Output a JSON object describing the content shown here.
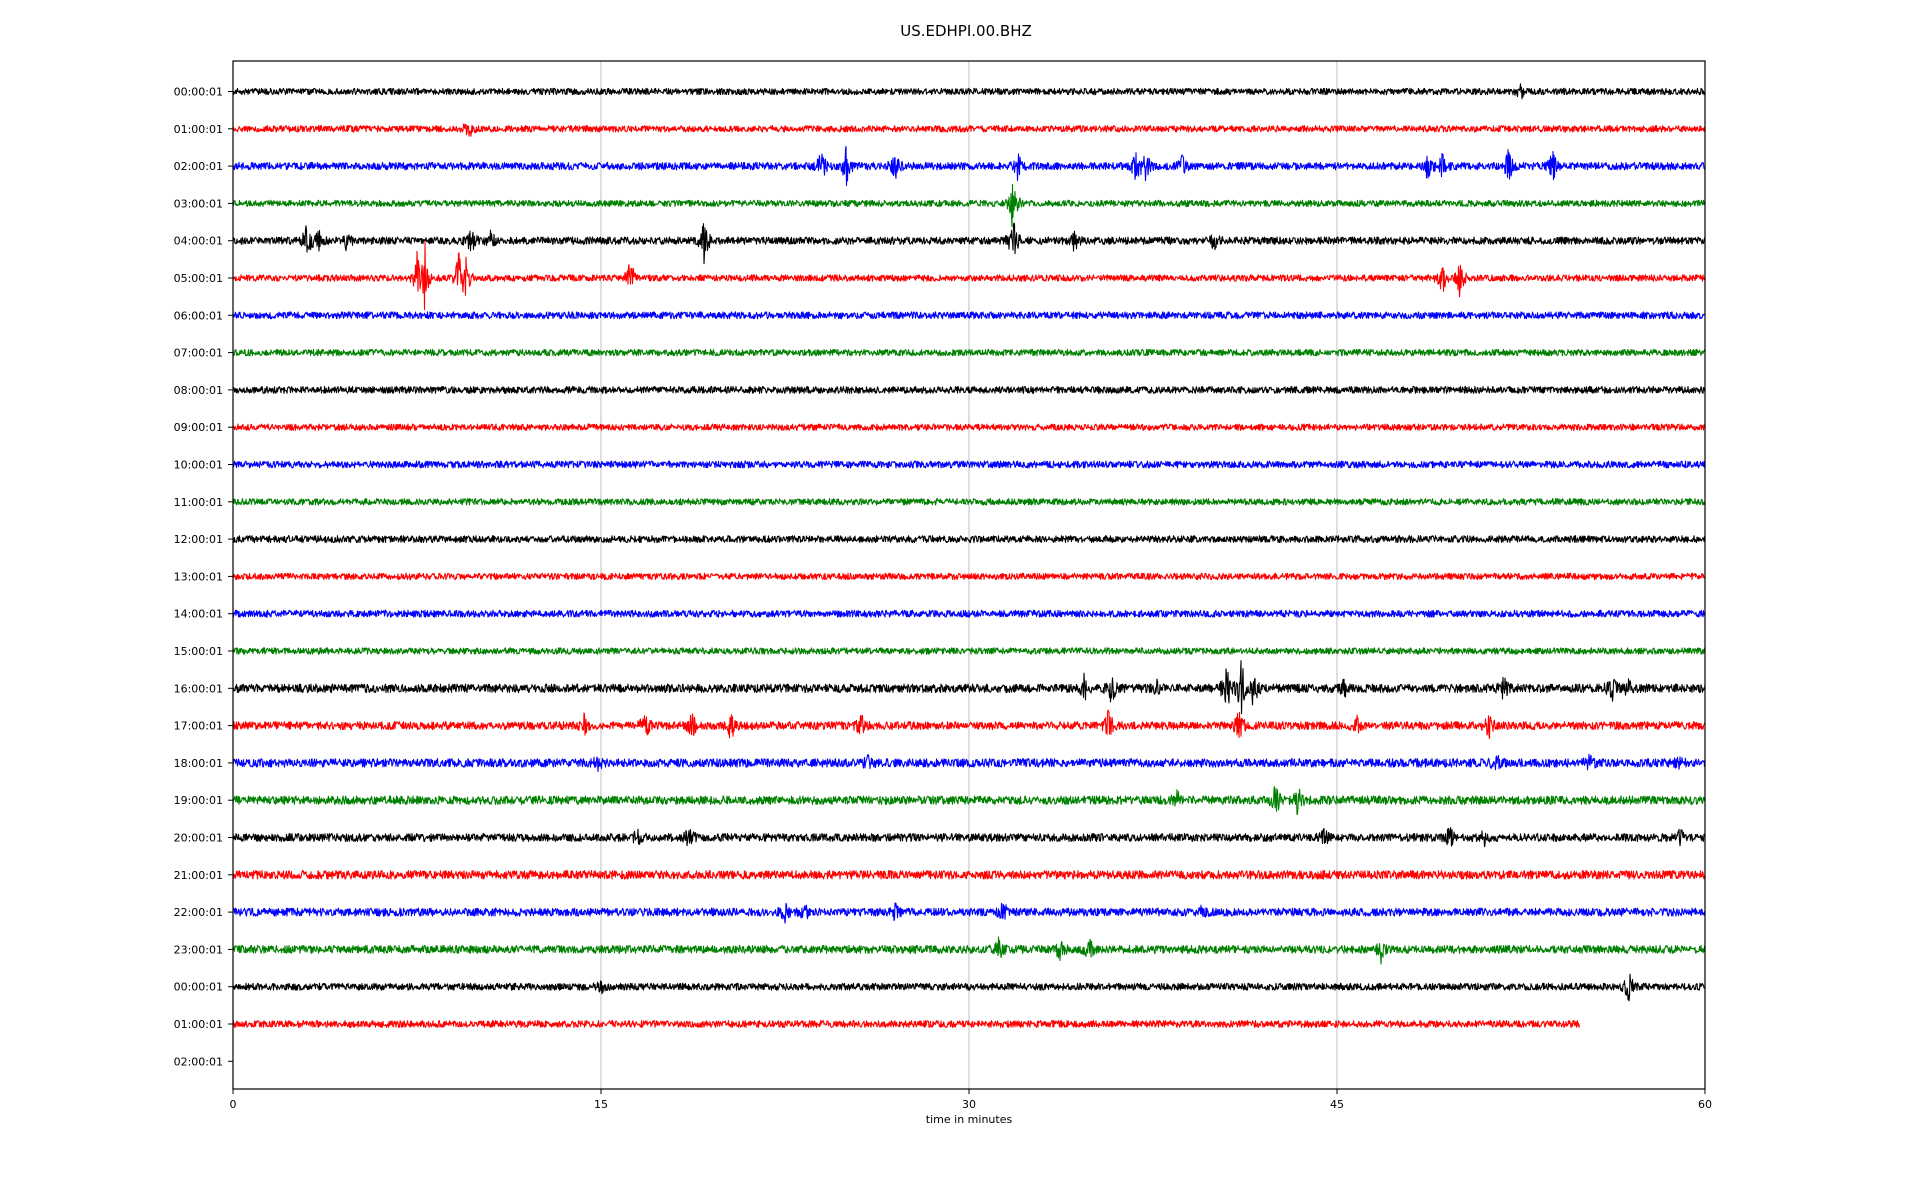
{
  "chart_data": {
    "type": "line",
    "title": "US.EDHPI.00.BHZ",
    "xlabel": "time in minutes",
    "ylabel": "",
    "xlim": [
      0,
      60
    ],
    "x_ticks": [
      0,
      15,
      30,
      45,
      60
    ],
    "x_tick_labels": [
      "0",
      "15",
      "30",
      "45",
      "60"
    ],
    "vertical_grid": true,
    "row_labels": [
      "00:00:01",
      "01:00:01",
      "02:00:01",
      "03:00:01",
      "04:00:01",
      "05:00:01",
      "06:00:01",
      "07:00:01",
      "08:00:01",
      "09:00:01",
      "10:00:01",
      "11:00:01",
      "12:00:01",
      "13:00:01",
      "14:00:01",
      "15:00:01",
      "16:00:01",
      "17:00:01",
      "18:00:01",
      "19:00:01",
      "20:00:01",
      "21:00:01",
      "22:00:01",
      "23:00:01",
      "00:00:01",
      "01:00:01",
      "02:00:01"
    ],
    "color_cycle": [
      "#000000",
      "#ff0000",
      "#0000ff",
      "#008000"
    ],
    "traces": [
      {
        "row": 0,
        "end_minute": 60,
        "noise": 0.12,
        "events": [
          {
            "t": 52.5,
            "amp": 0.25
          }
        ]
      },
      {
        "row": 1,
        "end_minute": 60,
        "noise": 0.12,
        "events": [
          {
            "t": 9.6,
            "amp": 0.4
          }
        ]
      },
      {
        "row": 2,
        "end_minute": 60,
        "noise": 0.14,
        "events": [
          {
            "t": 24.0,
            "amp": 0.6
          },
          {
            "t": 25.0,
            "amp": 0.7
          },
          {
            "t": 27.0,
            "amp": 0.5
          },
          {
            "t": 32.0,
            "amp": 0.5
          },
          {
            "t": 36.8,
            "amp": 0.7
          },
          {
            "t": 37.2,
            "amp": 0.6
          },
          {
            "t": 38.7,
            "amp": 0.5
          },
          {
            "t": 48.7,
            "amp": 0.5
          },
          {
            "t": 49.3,
            "amp": 0.5
          },
          {
            "t": 52.0,
            "amp": 0.7
          },
          {
            "t": 53.8,
            "amp": 0.6
          }
        ]
      },
      {
        "row": 3,
        "end_minute": 60,
        "noise": 0.12,
        "events": [
          {
            "t": 31.8,
            "amp": 1.3
          }
        ]
      },
      {
        "row": 4,
        "end_minute": 60,
        "noise": 0.14,
        "events": [
          {
            "t": 3.0,
            "amp": 0.7
          },
          {
            "t": 3.5,
            "amp": 0.8
          },
          {
            "t": 4.6,
            "amp": 0.6
          },
          {
            "t": 9.7,
            "amp": 0.5
          },
          {
            "t": 10.5,
            "amp": 0.4
          },
          {
            "t": 19.2,
            "amp": 0.9
          },
          {
            "t": 31.8,
            "amp": 1.0
          },
          {
            "t": 34.3,
            "amp": 0.4
          },
          {
            "t": 40.0,
            "amp": 0.4
          }
        ]
      },
      {
        "row": 5,
        "end_minute": 60,
        "noise": 0.12,
        "events": [
          {
            "t": 7.5,
            "amp": 0.8
          },
          {
            "t": 7.8,
            "amp": 1.6
          },
          {
            "t": 9.2,
            "amp": 0.9
          },
          {
            "t": 9.5,
            "amp": 0.7
          },
          {
            "t": 16.2,
            "amp": 0.8
          },
          {
            "t": 49.3,
            "amp": 0.6
          },
          {
            "t": 50.0,
            "amp": 0.8
          }
        ]
      },
      {
        "row": 6,
        "end_minute": 60,
        "noise": 0.13,
        "events": []
      },
      {
        "row": 7,
        "end_minute": 60,
        "noise": 0.12,
        "events": []
      },
      {
        "row": 8,
        "end_minute": 60,
        "noise": 0.13,
        "events": []
      },
      {
        "row": 9,
        "end_minute": 60,
        "noise": 0.12,
        "events": []
      },
      {
        "row": 10,
        "end_minute": 60,
        "noise": 0.13,
        "events": []
      },
      {
        "row": 11,
        "end_minute": 60,
        "noise": 0.12,
        "events": []
      },
      {
        "row": 12,
        "end_minute": 60,
        "noise": 0.13,
        "events": []
      },
      {
        "row": 13,
        "end_minute": 60,
        "noise": 0.12,
        "events": []
      },
      {
        "row": 14,
        "end_minute": 60,
        "noise": 0.13,
        "events": []
      },
      {
        "row": 15,
        "end_minute": 60,
        "noise": 0.12,
        "events": []
      },
      {
        "row": 16,
        "end_minute": 60,
        "noise": 0.16,
        "events": [
          {
            "t": 34.7,
            "amp": 0.5
          },
          {
            "t": 35.8,
            "amp": 0.6
          },
          {
            "t": 37.6,
            "amp": 0.4
          },
          {
            "t": 40.5,
            "amp": 1.0
          },
          {
            "t": 41.1,
            "amp": 1.1
          },
          {
            "t": 41.6,
            "amp": 0.7
          },
          {
            "t": 45.3,
            "amp": 0.3
          },
          {
            "t": 51.8,
            "amp": 0.4
          },
          {
            "t": 56.2,
            "amp": 0.5
          },
          {
            "t": 56.9,
            "amp": 0.4
          }
        ]
      },
      {
        "row": 17,
        "end_minute": 60,
        "noise": 0.15,
        "events": [
          {
            "t": 14.3,
            "amp": 0.4
          },
          {
            "t": 16.8,
            "amp": 0.6
          },
          {
            "t": 18.7,
            "amp": 0.5
          },
          {
            "t": 20.3,
            "amp": 0.6
          },
          {
            "t": 25.6,
            "amp": 0.4
          },
          {
            "t": 35.7,
            "amp": 0.6
          },
          {
            "t": 41.0,
            "amp": 0.6
          },
          {
            "t": 45.8,
            "amp": 0.3
          },
          {
            "t": 51.2,
            "amp": 0.5
          }
        ]
      },
      {
        "row": 18,
        "end_minute": 60,
        "noise": 0.16,
        "events": [
          {
            "t": 14.9,
            "amp": 0.3
          },
          {
            "t": 25.9,
            "amp": 0.3
          },
          {
            "t": 51.5,
            "amp": 0.3
          },
          {
            "t": 55.3,
            "amp": 0.3
          },
          {
            "t": 58.9,
            "amp": 0.25
          }
        ]
      },
      {
        "row": 19,
        "end_minute": 60,
        "noise": 0.16,
        "events": [
          {
            "t": 38.5,
            "amp": 0.3
          },
          {
            "t": 42.5,
            "amp": 0.6
          },
          {
            "t": 43.4,
            "amp": 0.5
          }
        ]
      },
      {
        "row": 20,
        "end_minute": 60,
        "noise": 0.15,
        "events": [
          {
            "t": 16.5,
            "amp": 0.3
          },
          {
            "t": 18.6,
            "amp": 0.4
          },
          {
            "t": 44.5,
            "amp": 0.3
          },
          {
            "t": 49.6,
            "amp": 0.4
          },
          {
            "t": 51.0,
            "amp": 0.4
          },
          {
            "t": 59.0,
            "amp": 0.3
          }
        ]
      },
      {
        "row": 21,
        "end_minute": 60,
        "noise": 0.16,
        "events": []
      },
      {
        "row": 22,
        "end_minute": 60,
        "noise": 0.15,
        "events": [
          {
            "t": 22.5,
            "amp": 0.3
          },
          {
            "t": 23.3,
            "amp": 0.3
          },
          {
            "t": 27.0,
            "amp": 0.3
          },
          {
            "t": 31.4,
            "amp": 0.5
          },
          {
            "t": 39.5,
            "amp": 0.2
          }
        ]
      },
      {
        "row": 23,
        "end_minute": 60,
        "noise": 0.15,
        "events": [
          {
            "t": 31.2,
            "amp": 0.4
          },
          {
            "t": 33.7,
            "amp": 0.4
          },
          {
            "t": 34.9,
            "amp": 0.4
          },
          {
            "t": 46.8,
            "amp": 0.5
          }
        ]
      },
      {
        "row": 24,
        "end_minute": 60,
        "noise": 0.13,
        "events": [
          {
            "t": 15.0,
            "amp": 0.2
          },
          {
            "t": 56.9,
            "amp": 0.6
          }
        ]
      },
      {
        "row": 25,
        "end_minute": 54.9,
        "noise": 0.13,
        "events": []
      }
    ]
  }
}
